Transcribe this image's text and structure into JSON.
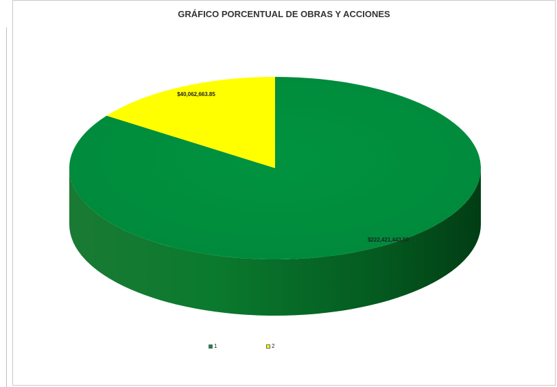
{
  "chart_data": {
    "type": "pie",
    "title": "GRÁFICO PORCENTUAL DE OBRAS Y ACCIONES",
    "categories": [
      "1",
      "2"
    ],
    "values": [
      222421443.5,
      40062663.85
    ],
    "data_labels": [
      "$222,421,443.50",
      "$40,062,663.85"
    ],
    "colors": [
      "#00913f",
      "#ffff00"
    ],
    "legend_position": "bottom",
    "style": "3d"
  }
}
